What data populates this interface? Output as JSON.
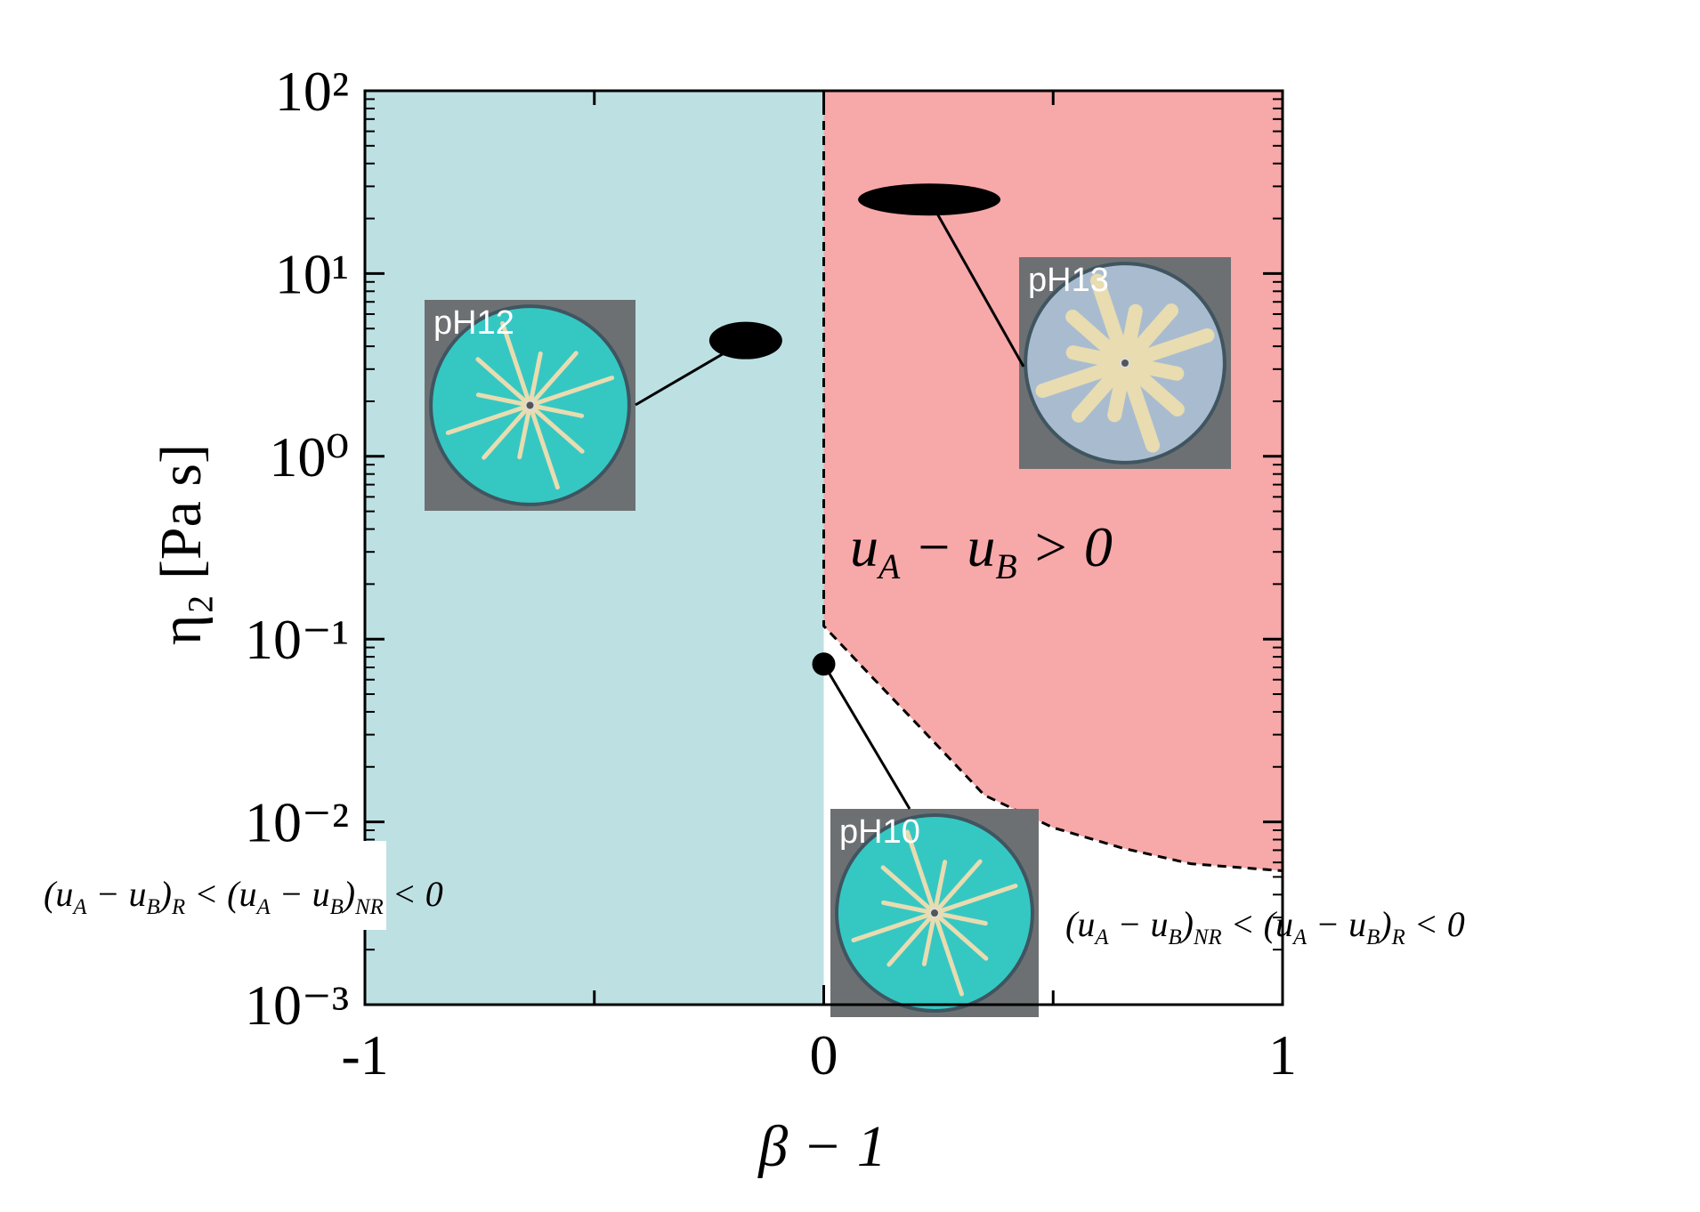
{
  "chart_data": {
    "type": "scatter",
    "x_label": "β − 1",
    "y_label": "η₂ [Pa s]",
    "xlim": [
      -1,
      1
    ],
    "xticks": [
      -1,
      0,
      1
    ],
    "xminorticks": [
      -0.5,
      0.5
    ],
    "ylim": [
      0.001,
      100
    ],
    "log_y": true,
    "yticks": [
      {
        "value": 0.001,
        "label": "10⁻³"
      },
      {
        "value": 0.01,
        "label": "10⁻²"
      },
      {
        "value": 0.1,
        "label": "10⁻¹"
      },
      {
        "value": 1,
        "label": "10⁰"
      },
      {
        "value": 10,
        "label": "10¹"
      },
      {
        "value": 100,
        "label": "10²"
      }
    ],
    "yminorticks": [
      0.002,
      0.003,
      0.004,
      0.005,
      0.006,
      0.007,
      0.008,
      0.009,
      0.02,
      0.03,
      0.04,
      0.05,
      0.06,
      0.07,
      0.08,
      0.09,
      0.2,
      0.3,
      0.4,
      0.5,
      0.6,
      0.7,
      0.8,
      0.9,
      2,
      3,
      4,
      5,
      6,
      7,
      8,
      9,
      20,
      30,
      40,
      50,
      60,
      70,
      80,
      90
    ],
    "left_region_color": "#bde0e3",
    "right_region_color": "#f7a8a8",
    "boundary": {
      "x": [
        0,
        0,
        0.1,
        0.2,
        0.35,
        0.5,
        0.65,
        0.8,
        1
      ],
      "y": [
        100,
        0.118,
        0.064,
        0.035,
        0.014,
        0.0093,
        0.0072,
        0.0059,
        0.0054
      ]
    },
    "points": {
      "x": [
        -0.17,
        0.23,
        0
      ],
      "y": [
        4.3,
        25.4,
        0.073
      ],
      "labels": [
        "pH12",
        "pH13",
        "pH10"
      ],
      "photo_colors": [
        "#35c8c3",
        "#a9bccf",
        "#35c8c3"
      ],
      "color": "#000000"
    },
    "annotations": [
      [
        "u",
        "A",
        " − u",
        "B",
        " > 0"
      ],
      [
        "(u",
        "A",
        " − u",
        "B",
        ")",
        "R",
        " < (u",
        "A",
        " − u",
        "B",
        ")",
        "NR",
        " < 0"
      ],
      [
        "(u",
        "A",
        " − u",
        "B",
        ")",
        "NR",
        " < (u",
        "A",
        " − u",
        "B",
        ")",
        "R",
        " < 0"
      ]
    ]
  }
}
